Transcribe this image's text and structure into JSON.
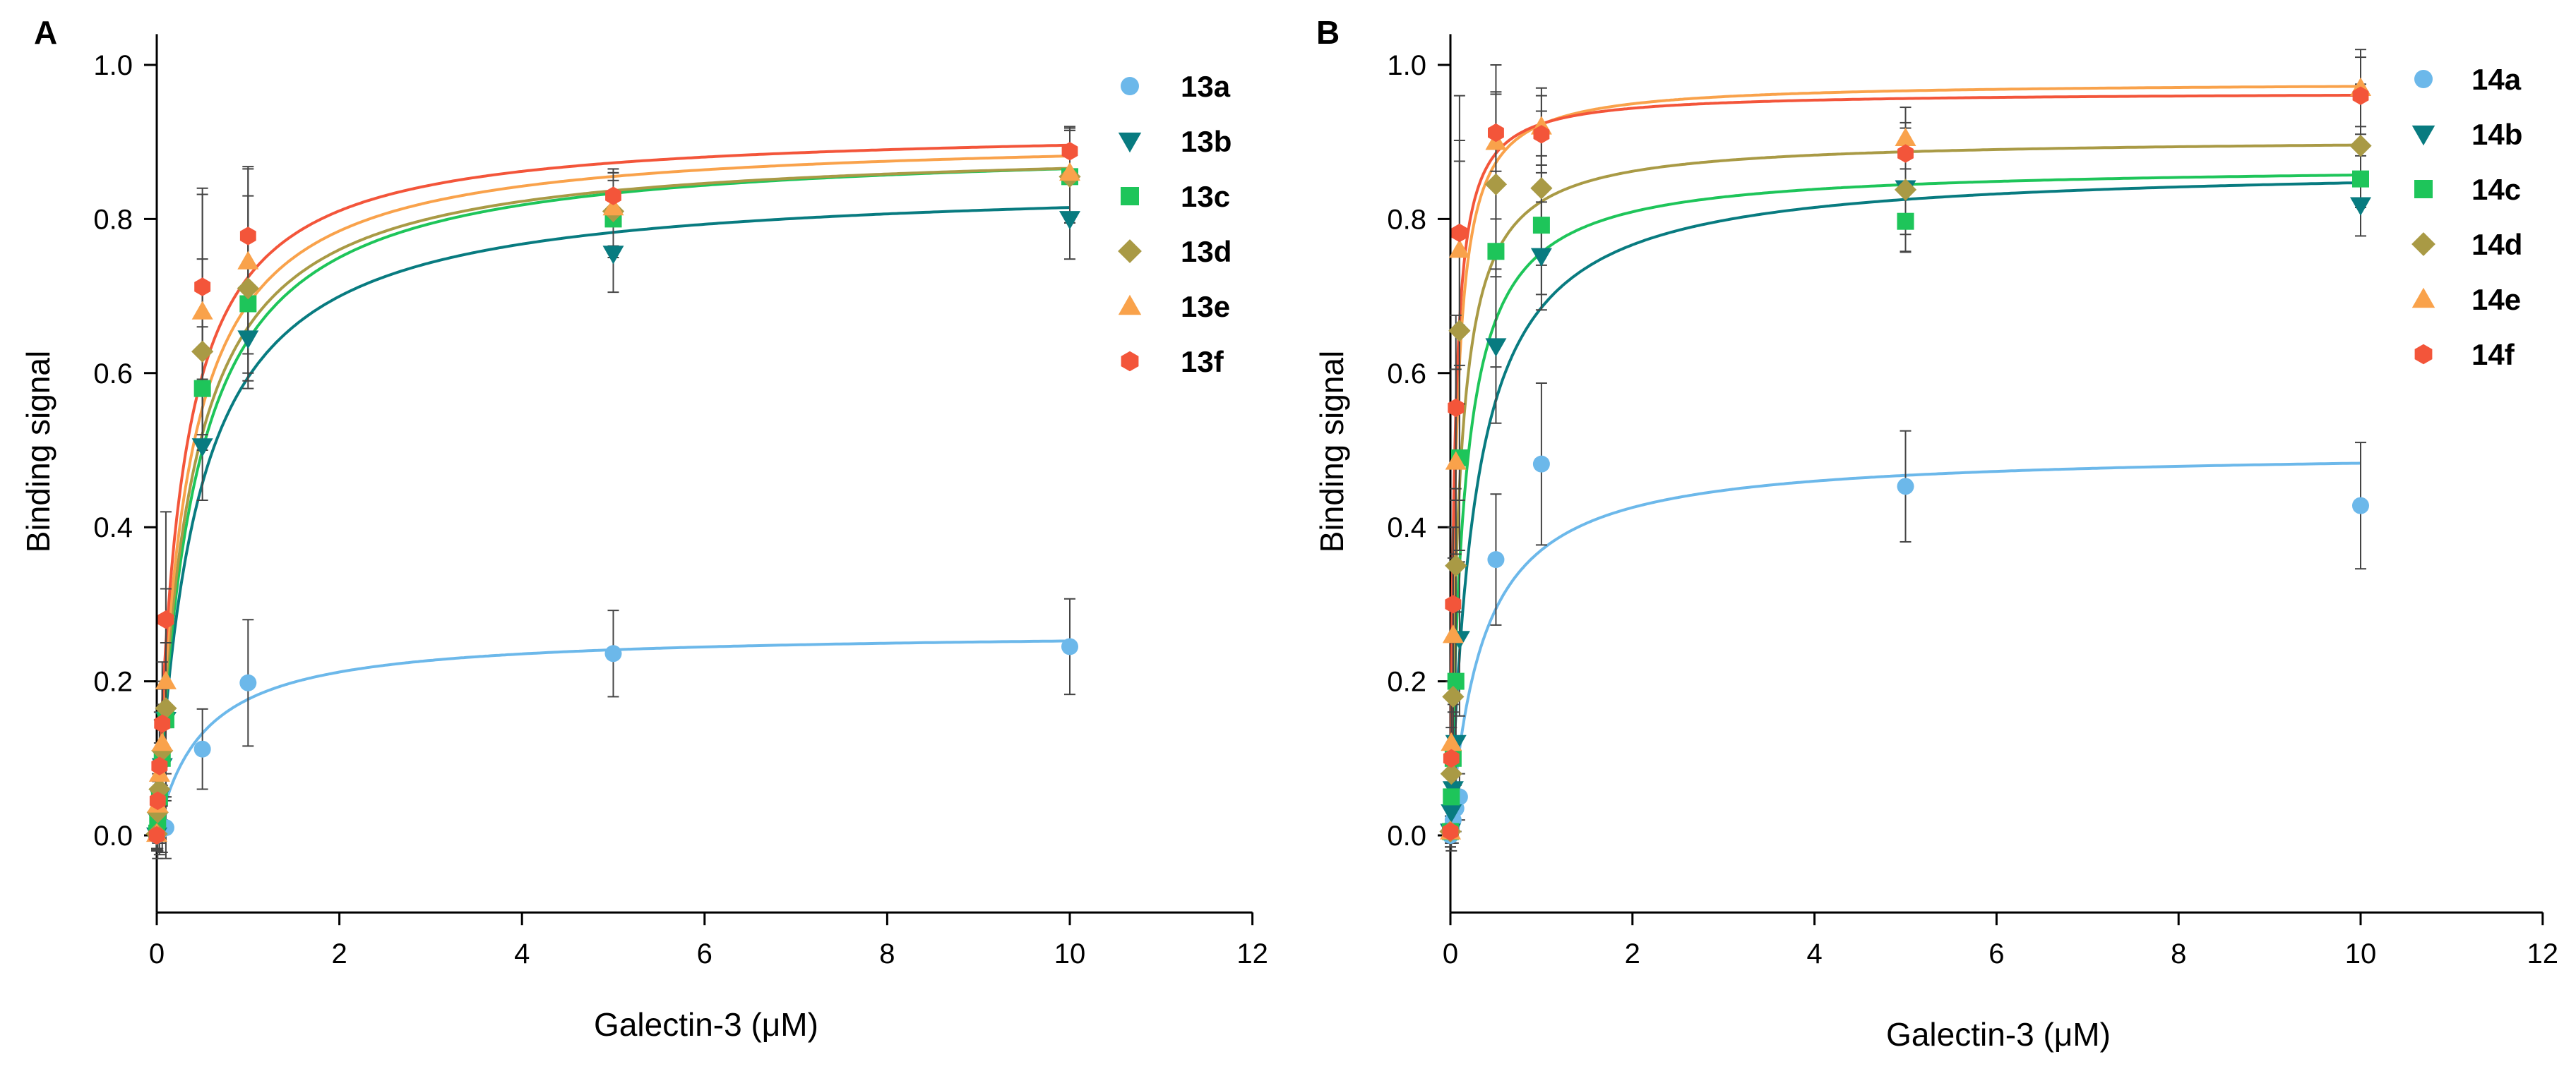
{
  "chart_data": [
    {
      "type": "scatter",
      "panel": "A",
      "xlabel": "Galectin-3 (μM)",
      "ylabel": "Binding signal",
      "xlim": [
        0,
        12
      ],
      "ylim": [
        -0.1,
        1.04
      ],
      "xticks": [
        0,
        2,
        4,
        6,
        8,
        10,
        12
      ],
      "xtick_labels": [
        "0",
        "2",
        "4",
        "6",
        "8",
        "10",
        "12"
      ],
      "yticks": [
        0,
        0.2,
        0.4,
        0.6,
        0.8,
        1.0
      ],
      "ytick_labels": [
        "0.0",
        "0.2",
        "0.4",
        "0.6",
        "0.8",
        "1.0"
      ],
      "grid": false,
      "legend_position": "top-right",
      "x": [
        0,
        0.01,
        0.03,
        0.06,
        0.1,
        0.5,
        1,
        5,
        10
      ],
      "series": [
        {
          "name": "13a",
          "color": "#6cb8ea",
          "marker": "circle",
          "values": [
            0,
            0.003,
            0.005,
            0.008,
            0.01,
            0.112,
            0.198,
            0.236,
            0.245
          ],
          "errors": [
            0.005,
            0.02,
            0.03,
            0.03,
            0.04,
            0.052,
            0.082,
            0.056,
            0.062
          ],
          "fit": {
            "bmax": 0.265,
            "kd": 0.5
          }
        },
        {
          "name": "13b",
          "color": "#087b80",
          "marker": "triangle-down",
          "values": [
            0,
            0.02,
            0.05,
            0.09,
            0.15,
            0.505,
            0.645,
            0.755,
            0.8
          ],
          "errors": [
            0.02,
            0.04,
            0.06,
            0.07,
            0.1,
            0.07,
            0.065,
            0.05,
            0.052
          ],
          "fit": {
            "bmax": 0.85,
            "kd": 0.43
          }
        },
        {
          "name": "13c",
          "color": "#1ec55a",
          "marker": "square",
          "values": [
            0.003,
            0.02,
            0.05,
            0.1,
            0.15,
            0.58,
            0.69,
            0.8,
            0.855
          ],
          "errors": [
            0.02,
            0.05,
            0.06,
            0.07,
            0.1,
            0.08,
            0.09,
            0.05,
            0.06
          ],
          "fit": {
            "bmax": 0.9,
            "kd": 0.4
          }
        },
        {
          "name": "13d",
          "color": "#a99a45",
          "marker": "diamond",
          "values": [
            0.002,
            0.03,
            0.06,
            0.11,
            0.165,
            0.628,
            0.71,
            0.81,
            0.855
          ],
          "errors": [
            0.02,
            0.05,
            0.06,
            0.08,
            0.12,
            0.12,
            0.12,
            0.05,
            0.06
          ],
          "fit": {
            "bmax": 0.897,
            "kd": 0.36
          }
        },
        {
          "name": "13e",
          "color": "#f9a24b",
          "marker": "triangle-up",
          "values": [
            0.002,
            0.04,
            0.08,
            0.12,
            0.2,
            0.68,
            0.745,
            0.815,
            0.86
          ],
          "errors": [
            0.02,
            0.05,
            0.07,
            0.08,
            0.12,
            0.16,
            0.12,
            0.05,
            0.06
          ],
          "fit": {
            "bmax": 0.91,
            "kd": 0.32
          }
        },
        {
          "name": "13f",
          "color": "#f3553a",
          "marker": "hexagon",
          "values": [
            0,
            0.045,
            0.09,
            0.145,
            0.28,
            0.712,
            0.778,
            0.83,
            0.888
          ],
          "errors": [
            0.02,
            0.05,
            0.07,
            0.08,
            0.14,
            0.12,
            0.09,
            0.03,
            0.03
          ],
          "fit": {
            "bmax": 0.92,
            "kd": 0.27
          }
        }
      ]
    },
    {
      "type": "scatter",
      "panel": "B",
      "xlabel": "Galectin-3 (μM)",
      "ylabel": "Binding signal",
      "xlim": [
        0,
        12
      ],
      "ylim": [
        -0.1,
        1.04
      ],
      "xticks": [
        0,
        2,
        4,
        6,
        8,
        10,
        12
      ],
      "xtick_labels": [
        "0",
        "2",
        "4",
        "6",
        "8",
        "10",
        "12"
      ],
      "yticks": [
        0,
        0.2,
        0.4,
        0.6,
        0.8,
        1.0
      ],
      "ytick_labels": [
        "0.0",
        "0.2",
        "0.4",
        "0.6",
        "0.8",
        "1.0"
      ],
      "grid": false,
      "legend_position": "top-right",
      "x": [
        0,
        0.01,
        0.03,
        0.06,
        0.1,
        0.5,
        1,
        5,
        10
      ],
      "series": [
        {
          "name": "14a",
          "color": "#6cb8ea",
          "marker": "circle",
          "values": [
            0,
            0.01,
            0.02,
            0.035,
            0.05,
            0.358,
            0.482,
            0.453,
            0.428
          ],
          "errors": [
            0.01,
            0.02,
            0.03,
            0.03,
            0.03,
            0.085,
            0.105,
            0.072,
            0.082
          ],
          "fit": {
            "bmax": 0.5,
            "kd": 0.35
          }
        },
        {
          "name": "14b",
          "color": "#087b80",
          "marker": "triangle-down",
          "values": [
            0.005,
            0.03,
            0.06,
            0.12,
            0.255,
            0.635,
            0.752,
            0.84,
            0.818
          ],
          "errors": [
            0.02,
            0.05,
            0.06,
            0.08,
            0.1,
            0.1,
            0.07,
            0.06,
            0.04
          ],
          "fit": {
            "bmax": 0.87,
            "kd": 0.27
          }
        },
        {
          "name": "14c",
          "color": "#1ec55a",
          "marker": "square",
          "values": [
            0.005,
            0.05,
            0.1,
            0.2,
            0.49,
            0.758,
            0.792,
            0.797,
            0.852
          ],
          "errors": [
            0.02,
            0.05,
            0.07,
            0.09,
            0.12,
            0.15,
            0.09,
            0.04,
            0.03
          ],
          "fit": {
            "bmax": 0.87,
            "kd": 0.15
          }
        },
        {
          "name": "14d",
          "color": "#a99a45",
          "marker": "diamond",
          "values": [
            0.005,
            0.08,
            0.18,
            0.35,
            0.655,
            0.845,
            0.84,
            0.838,
            0.895
          ],
          "errors": [
            0.02,
            0.06,
            0.08,
            0.1,
            0.22,
            0.12,
            0.1,
            0.08,
            0.08
          ],
          "fit": {
            "bmax": 0.905,
            "kd": 0.1
          }
        },
        {
          "name": "14e",
          "color": "#f9a24b",
          "marker": "triangle-up",
          "values": [
            0.005,
            0.12,
            0.26,
            0.485,
            0.76,
            0.9,
            0.92,
            0.905,
            0.97
          ],
          "errors": [
            0.02,
            0.08,
            0.1,
            0.12,
            0.2,
            0.1,
            0.05,
            0.04,
            0.05
          ],
          "fit": {
            "bmax": 0.978,
            "kd": 0.06
          }
        },
        {
          "name": "14f",
          "color": "#f3553a",
          "marker": "hexagon",
          "values": [
            0.005,
            0.1,
            0.3,
            0.555,
            0.782,
            0.912,
            0.91,
            0.885,
            0.96
          ],
          "errors": [
            0.02,
            0.08,
            0.1,
            0.12,
            0.12,
            0.05,
            0.05,
            0.04,
            0.05
          ],
          "fit": {
            "bmax": 0.965,
            "kd": 0.045
          }
        }
      ]
    }
  ]
}
